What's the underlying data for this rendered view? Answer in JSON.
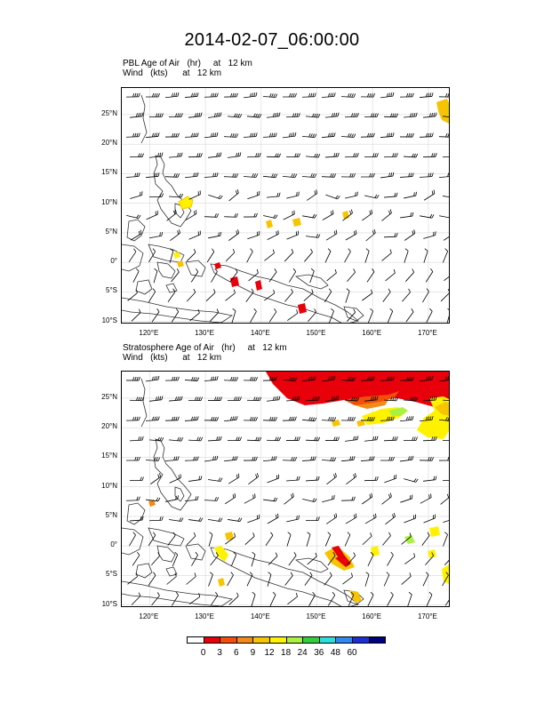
{
  "title": "2014-02-07_06:00:00",
  "panels": [
    {
      "name": "pbl",
      "line1": "PBL Age of Air   (hr)     at   12 km",
      "line2": "Wind   (kts)      at   12 km",
      "lat_ticks": [
        "25°N",
        "20°N",
        "15°N",
        "10°N",
        "5°N",
        "0°",
        "5°S",
        "10°S"
      ],
      "lon_ticks": [
        "120°E",
        "130°E",
        "140°E",
        "150°E",
        "160°E",
        "170°E"
      ]
    },
    {
      "name": "strat",
      "line1": "Stratosphere Age of Air   (hr)     at   12 km",
      "line2": "Wind   (kts)      at   12 km",
      "lat_ticks": [
        "25°N",
        "20°N",
        "15°N",
        "10°N",
        "5°N",
        "0°",
        "5°S",
        "10°S"
      ],
      "lon_ticks": [
        "120°E",
        "130°E",
        "140°E",
        "150°E",
        "160°E",
        "170°E"
      ]
    }
  ],
  "colorbar": {
    "labels": [
      "0",
      "3",
      "6",
      "9",
      "12",
      "18",
      "24",
      "36",
      "48",
      "60"
    ],
    "colors": [
      "#ffffff",
      "#e8000b",
      "#f24f0a",
      "#f38a17",
      "#f6c400",
      "#fff200",
      "#aaf23f",
      "#2fd03c",
      "#2ddede",
      "#3088f0",
      "#1d2fd0",
      "#000080"
    ]
  }
}
